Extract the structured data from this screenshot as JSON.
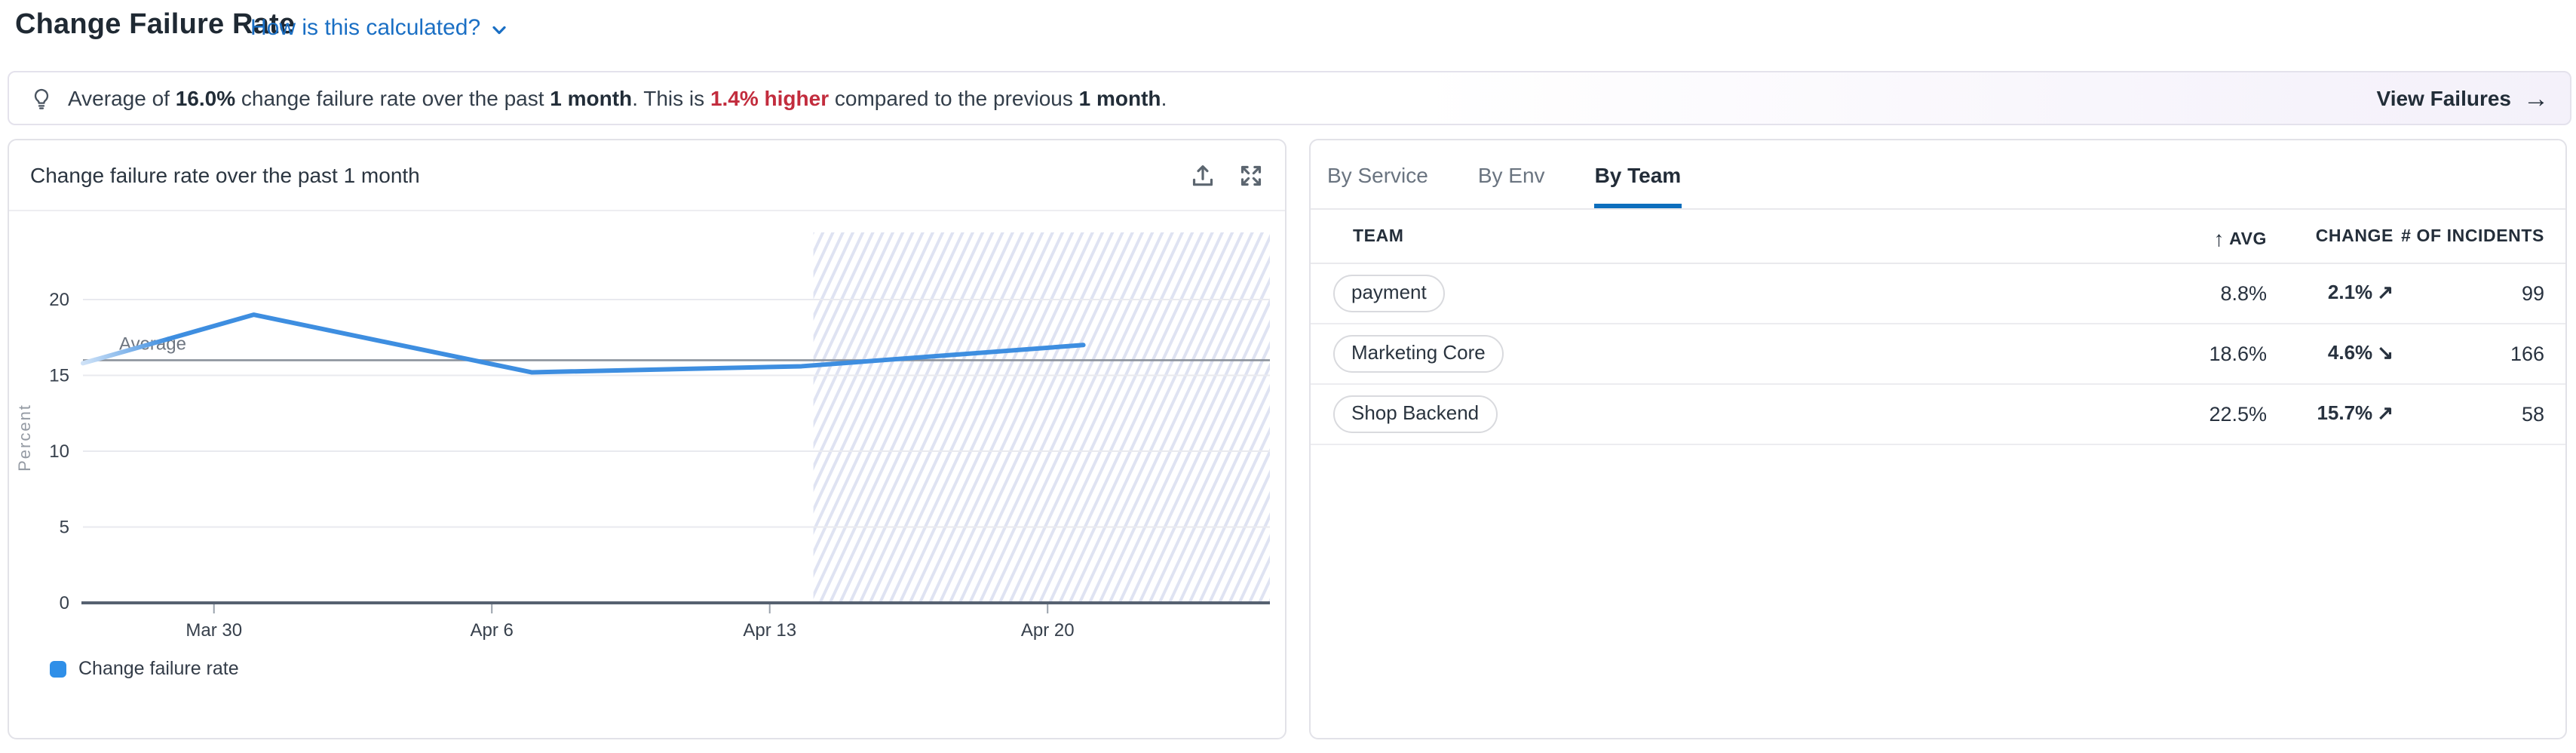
{
  "page": {
    "title": "Change Failure Rate",
    "help_link_label": "How is this calculated?"
  },
  "banner": {
    "message_segments": [
      {
        "text": "Average of ",
        "style": "normal"
      },
      {
        "text": "16.0%",
        "style": "bold"
      },
      {
        "text": " change failure rate over the past ",
        "style": "normal"
      },
      {
        "text": "1 month",
        "style": "bold"
      },
      {
        "text": ". This is ",
        "style": "normal"
      },
      {
        "text": "1.4% higher",
        "style": "bold-red"
      },
      {
        "text": " compared to the previous ",
        "style": "normal"
      },
      {
        "text": "1 month",
        "style": "bold"
      },
      {
        "text": ".",
        "style": "normal"
      }
    ],
    "action_label": "View Failures",
    "action_arrow": "→"
  },
  "chart_panel": {
    "title": "Change failure rate over the past 1 month",
    "legend_label": "Change failure rate"
  },
  "chart_data": {
    "type": "line",
    "title": "Change failure rate over the past 1 month",
    "ylabel": "Percent",
    "ylim": [
      0,
      24
    ],
    "yticks": [
      0,
      5,
      10,
      15,
      20
    ],
    "x_domain_days": [
      0,
      29.9
    ],
    "xticks": [
      {
        "day": 3.3,
        "label": "Mar 30"
      },
      {
        "day": 10.3,
        "label": "Apr 6"
      },
      {
        "day": 17.3,
        "label": "Apr 13"
      },
      {
        "day": 24.3,
        "label": "Apr 20"
      }
    ],
    "series": [
      {
        "name": "Change failure rate",
        "color": "#3e8ee0",
        "points": [
          {
            "day": 0.0,
            "value": 15.8
          },
          {
            "day": 4.3,
            "value": 19.0
          },
          {
            "day": 11.3,
            "value": 15.2
          },
          {
            "day": 18.1,
            "value": 15.6
          },
          {
            "day": 25.2,
            "value": 17.0
          }
        ]
      }
    ],
    "average_line": {
      "label": "Average",
      "value": 16.0
    },
    "projection_region": {
      "start_day": 18.4,
      "style": "hatched"
    },
    "legend_position": "bottom-left",
    "grid": "horizontal"
  },
  "breakdown_panel": {
    "tabs": [
      {
        "label": "By Service",
        "active": false
      },
      {
        "label": "By Env",
        "active": false
      },
      {
        "label": "By Team",
        "active": true
      }
    ],
    "table": {
      "sort_icon": "↑",
      "headers": [
        {
          "label": "TEAM"
        },
        {
          "label": "AVG",
          "sorted": true
        },
        {
          "label": "CHANGE"
        },
        {
          "label": "# OF INCIDENTS"
        }
      ],
      "rows": [
        {
          "team": "payment",
          "avg": "8.8%",
          "change": "2.1%",
          "trend_direction": "up",
          "trend_sentiment": "negative",
          "incidents": "99"
        },
        {
          "team": "Marketing Core",
          "avg": "18.6%",
          "change": "4.6%",
          "trend_direction": "down",
          "trend_sentiment": "positive",
          "incidents": "166"
        },
        {
          "team": "Shop Backend",
          "avg": "22.5%",
          "change": "15.7%",
          "trend_direction": "up",
          "trend_sentiment": "negative",
          "incidents": "58"
        }
      ]
    }
  },
  "colors": {
    "accent_blue": "#1a6fc4",
    "tab_underline": "#0d6ebd",
    "line_blue": "#3e8ee0",
    "legend_blue": "#2f8fe8",
    "negative_red": "#c22c3d",
    "positive_green": "#15803c",
    "average_gray": "#8b929c",
    "hatch_stripe": "#dfe3f2",
    "text_dark": "#28323f",
    "text_gray": "#6a7480"
  }
}
